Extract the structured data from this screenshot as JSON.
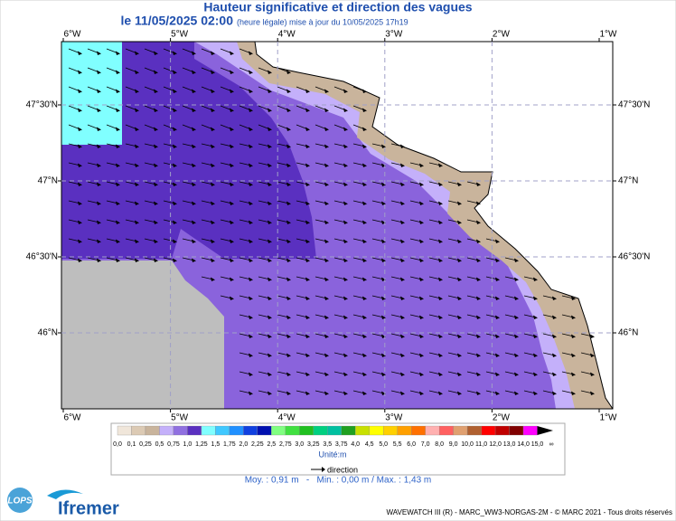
{
  "header": {
    "title": "Hauteur significative et direction des vagues",
    "date": "le 11/05/2025 02:00",
    "update": "(heure légale) mise à jour du 10/05/2025 17h19"
  },
  "map": {
    "lon_labels": [
      "6°W",
      "5°W",
      "4°W",
      "3°W",
      "2°W",
      "1°W"
    ],
    "lat_labels": [
      "47°30'N",
      "47°N",
      "46°30'N",
      "46°N"
    ]
  },
  "legend": {
    "labels": [
      "0,0",
      "0,1",
      "0,25",
      "0,5",
      "0,75",
      "1,0",
      "1,25",
      "1,5",
      "1,75",
      "2,0",
      "2,25",
      "2,5",
      "2,75",
      "3,0",
      "3,25",
      "3,5",
      "3,75",
      "4,0",
      "4,5",
      "5,0",
      "5,5",
      "6,0",
      "7,0",
      "8,0",
      "9,0",
      "10,0",
      "11,0",
      "12,0",
      "13,0",
      "14,0",
      "15,0",
      "∞"
    ],
    "colors": [
      "#f0e6da",
      "#dccab4",
      "#c9b49c",
      "#c4b0fa",
      "#9070e0",
      "#5a30c0",
      "#80ffff",
      "#40c8ff",
      "#2090ff",
      "#1040e0",
      "#0010b0",
      "#80ff80",
      "#40e040",
      "#20c020",
      "#00d080",
      "#00c0a0",
      "#20a020",
      "#c8e000",
      "#ffff00",
      "#ffd000",
      "#ffa000",
      "#ff7000",
      "#ffb0b0",
      "#ff6060",
      "#e0a070",
      "#b06030",
      "#ff0000",
      "#c00000",
      "#800000",
      "#ff00ff",
      "#000000"
    ],
    "unit": "Unité:m",
    "direction": "direction"
  },
  "stats": "Moy. : 0,91 m   -   Min. : 0,00 m / Max. : 1,43 m",
  "logos": {
    "lops": "LOPS",
    "ifremer": "Ifremer"
  },
  "footer": "WAVEWATCH III (R) - MARC_WW3-NORGAS-2M - © MARC 2021 - Tous droits réservés"
}
